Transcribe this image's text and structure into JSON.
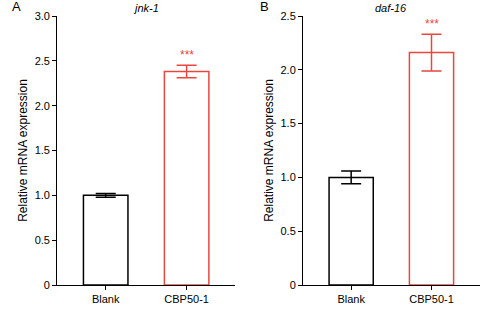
{
  "chart_data": [
    {
      "type": "bar",
      "panel": "A",
      "title": "jnk-1",
      "y_label": "Relative mRNA expression",
      "categories": [
        "Blank",
        "CBP50-1"
      ],
      "values": [
        1.0,
        2.38
      ],
      "errors": [
        0.02,
        0.07
      ],
      "colors": [
        "#000000",
        "#e8473f"
      ],
      "ylim": [
        0,
        3.0
      ],
      "yticks": [
        0,
        0.5,
        {
          "value": 1,
          "label": "1.0"
        },
        1.5,
        {
          "value": 2,
          "label": "2.0"
        },
        2.5,
        {
          "value": 3,
          "label": "3.0"
        }
      ],
      "grid": false,
      "annotations": [
        {
          "category": "CBP50-1",
          "text": "***"
        }
      ]
    },
    {
      "type": "bar",
      "panel": "B",
      "title": "daf-16",
      "y_label": "Relative mRNA expression",
      "categories": [
        "Blank",
        "CBP50-1"
      ],
      "values": [
        1.0,
        2.16
      ],
      "errors": [
        0.06,
        0.17
      ],
      "colors": [
        "#000000",
        "#e8473f"
      ],
      "ylim": [
        0,
        2.5
      ],
      "yticks": [
        0,
        0.5,
        {
          "value": 1,
          "label": "1.0"
        },
        1.5,
        {
          "value": 2,
          "label": "2.0"
        },
        2.5
      ],
      "grid": false,
      "annotations": [
        {
          "category": "CBP50-1",
          "text": "***"
        }
      ]
    }
  ]
}
